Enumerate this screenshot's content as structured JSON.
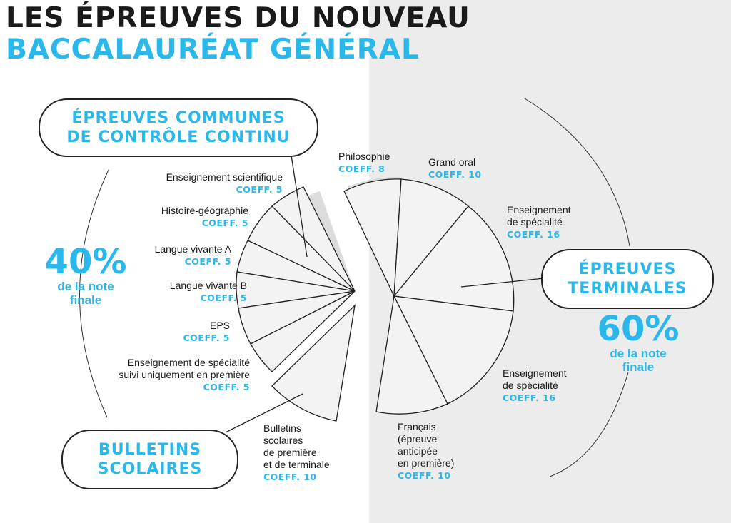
{
  "title": {
    "line1": "LES ÉPREUVES DU NOUVEAU",
    "line2": "BACCALAURÉAT GÉNÉRAL"
  },
  "left": {
    "group_title": [
      "ÉPREUVES COMMUNES",
      "DE CONTRÔLE CONTINU"
    ],
    "percent": "40%",
    "percent_caption": [
      "de la note",
      "finale"
    ],
    "items": [
      {
        "name": "Enseignement scientifique",
        "coeff": "COEFF. 5"
      },
      {
        "name": "Histoire-géographie",
        "coeff": "COEFF. 5"
      },
      {
        "name": "Langue vivante A",
        "coeff": "COEFF. 5"
      },
      {
        "name": "Langue vivante B",
        "coeff": "COEFF. 5"
      },
      {
        "name": "EPS",
        "coeff": "COEFF. 5"
      },
      {
        "name": "Enseignement de spécialité suivi uniquement en première",
        "name_lines": [
          "Enseignement de spécialité",
          "suivi uniquement en première"
        ],
        "coeff": "COEFF. 5"
      }
    ],
    "bulletins_title": [
      "BULLETINS",
      "SCOLAIRES"
    ],
    "bulletins": {
      "name_lines": [
        "Bulletins",
        "scolaires",
        "de première",
        "et de terminale"
      ],
      "coeff": "COEFF. 10"
    }
  },
  "right": {
    "group_title": [
      "ÉPREUVES",
      "TERMINALES"
    ],
    "percent": "60%",
    "percent_caption": [
      "de la note",
      "finale"
    ],
    "items": [
      {
        "name_lines": [
          "Philosophie"
        ],
        "coeff": "COEFF. 8"
      },
      {
        "name_lines": [
          "Grand oral"
        ],
        "coeff": "COEFF. 10"
      },
      {
        "name_lines": [
          "Enseignement",
          "de spécialité"
        ],
        "coeff": "COEFF. 16"
      },
      {
        "name_lines": [
          "Enseignement",
          "de spécialité"
        ],
        "coeff": "COEFF. 16"
      },
      {
        "name_lines": [
          "Français",
          "(épreuve",
          "anticipée",
          "en première)"
        ],
        "coeff": "COEFF. 10"
      }
    ]
  },
  "colors": {
    "accent": "#2ab8ec",
    "text": "#1a1a1a",
    "right_background": "#ececec",
    "slice_fill": "#f3f3f3",
    "shadow": "#dcdcdc"
  }
}
